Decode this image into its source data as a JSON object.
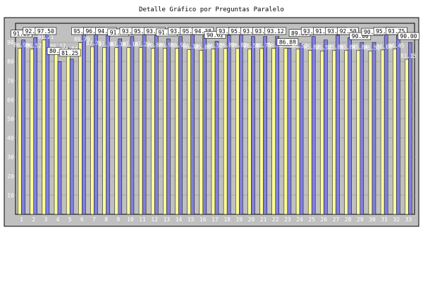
{
  "chart_data": {
    "type": "bar",
    "title": "Detalle Gráfico por Preguntas Paralelo",
    "xlabel": "",
    "ylabel": "",
    "ylim": [
      0,
      100
    ],
    "yticks": [
      10,
      20,
      30,
      40,
      50,
      60,
      70,
      80,
      90
    ],
    "grid": "horizontal",
    "categories": [
      "1",
      "2",
      "3",
      "4",
      "5",
      "6",
      "7",
      "8",
      "9",
      "10",
      "11",
      "12",
      "13",
      "14",
      "15",
      "16",
      "17",
      "18",
      "19",
      "20",
      "21",
      "22",
      "23",
      "24",
      "25",
      "26",
      "27",
      "28",
      "29",
      "30",
      "31",
      "32",
      "33"
    ],
    "series": [
      {
        "values": [
          86.99,
          86.52,
          91.21,
          86.17,
          84.94,
          89.79,
          87.75,
          87.3,
          87.18,
          87.18,
          87.23,
          86.84,
          86.91,
          86.91,
          86.18,
          85.88,
          86.52,
          86.82,
          86.82,
          86.5,
          86.75,
          86.88,
          86.88,
          86.52,
          85.83,
          85.52,
          85.86,
          85.84,
          85.84,
          85.51,
          86.0,
          86.45,
          81.15
        ],
        "color": "#ffff99"
      },
      {
        "values": [
          91.25,
          92.5,
          97.5,
          80.0,
          81.25,
          95.62,
          96.88,
          94.38,
          91.88,
          93.12,
          95.0,
          93.75,
          91.88,
          93.12,
          95.62,
          94.38,
          90.62,
          93.75,
          95.62,
          93.12,
          93.12,
          93.12,
          86.88,
          89.38,
          93.12,
          91.25,
          93.75,
          92.5,
          90.0,
          90.0,
          95.0,
          93.75,
          90.0
        ],
        "color": "#8080e0"
      }
    ]
  }
}
